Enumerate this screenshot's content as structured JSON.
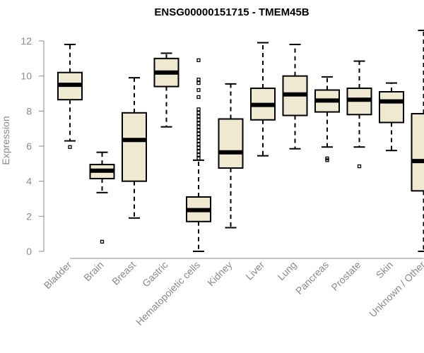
{
  "chart_data": {
    "type": "boxplot",
    "title": "ENSG00000151715 - TMEM45B",
    "xlabel": "",
    "ylabel": "Expression",
    "ylim": [
      0,
      12
    ],
    "yticks": [
      0,
      2,
      4,
      6,
      8,
      10,
      12
    ],
    "box_color": "#efe9d1",
    "categories": [
      "Bladder",
      "Brain",
      "Breast",
      "Gastric",
      "Hematopoietic cells",
      "Kidney",
      "Liver",
      "Lung",
      "Pancreas",
      "Prostate",
      "Skin",
      "Unknown / Other"
    ],
    "series": [
      {
        "name": "Bladder",
        "min": 6.3,
        "q1": 8.65,
        "median": 9.5,
        "q3": 10.2,
        "max": 11.8,
        "outliers": [
          5.95
        ]
      },
      {
        "name": "Brain",
        "min": 3.35,
        "q1": 4.15,
        "median": 4.6,
        "q3": 4.95,
        "max": 5.65,
        "outliers": [
          0.55
        ]
      },
      {
        "name": "Breast",
        "min": 1.9,
        "q1": 4.0,
        "median": 6.35,
        "q3": 7.9,
        "max": 9.9,
        "outliers": []
      },
      {
        "name": "Gastric",
        "min": 7.1,
        "q1": 9.4,
        "median": 10.2,
        "q3": 11.0,
        "max": 11.3,
        "outliers": []
      },
      {
        "name": "Hematopoietic cells",
        "min": 0.0,
        "q1": 1.7,
        "median": 2.35,
        "q3": 3.1,
        "max": 5.2,
        "outliers": [
          5.3,
          5.5,
          5.7,
          5.9,
          6.1,
          6.3,
          6.5,
          6.7,
          6.9,
          7.1,
          7.3,
          7.5,
          7.7,
          7.9,
          8.1,
          8.8,
          9.2,
          9.6,
          9.8,
          10.9
        ]
      },
      {
        "name": "Kidney",
        "min": 1.35,
        "q1": 4.75,
        "median": 5.65,
        "q3": 7.55,
        "max": 9.55,
        "outliers": []
      },
      {
        "name": "Liver",
        "min": 5.45,
        "q1": 7.5,
        "median": 8.35,
        "q3": 9.3,
        "max": 11.9,
        "outliers": []
      },
      {
        "name": "Lung",
        "min": 5.85,
        "q1": 7.75,
        "median": 8.95,
        "q3": 10.0,
        "max": 11.8,
        "outliers": []
      },
      {
        "name": "Pancreas",
        "min": 5.95,
        "q1": 7.95,
        "median": 8.6,
        "q3": 9.2,
        "max": 9.95,
        "outliers": [
          5.2,
          5.3
        ]
      },
      {
        "name": "Prostate",
        "min": 5.95,
        "q1": 7.8,
        "median": 8.65,
        "q3": 9.3,
        "max": 10.85,
        "outliers": [
          4.85
        ]
      },
      {
        "name": "Skin",
        "min": 5.75,
        "q1": 7.35,
        "median": 8.55,
        "q3": 9.1,
        "max": 9.6,
        "outliers": []
      },
      {
        "name": "Unknown / Other",
        "min": 0.0,
        "q1": 3.45,
        "median": 5.15,
        "q3": 7.85,
        "max": 12.6,
        "outliers": []
      }
    ]
  }
}
